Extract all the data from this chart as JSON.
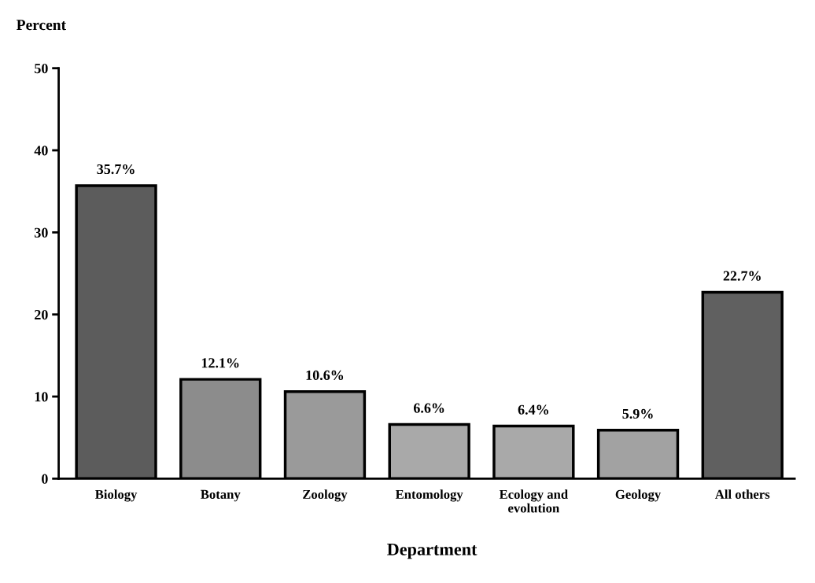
{
  "chart_data": {
    "type": "bar",
    "ylabel": "Percent",
    "xlabel": "Department",
    "categories": [
      "Biology",
      "Botany",
      "Zoology",
      "Entomology",
      "Ecology and\nevolution",
      "Geology",
      "All others"
    ],
    "values": [
      35.7,
      12.1,
      10.6,
      6.6,
      6.4,
      5.9,
      22.7
    ],
    "colors": [
      "#5c5c5c",
      "#8c8c8c",
      "#9a9a9a",
      "#a9a9a9",
      "#a9a9a9",
      "#a2a2a2",
      "#606060"
    ],
    "value_labels": [
      "35.7%",
      "12.1%",
      "10.6%",
      "6.6%",
      "6.4%",
      "5.9%",
      "22.7%"
    ],
    "ylim": [
      0,
      50
    ],
    "yticks": [
      0,
      10,
      20,
      30,
      40,
      50
    ],
    "grid": false,
    "legend": false
  }
}
